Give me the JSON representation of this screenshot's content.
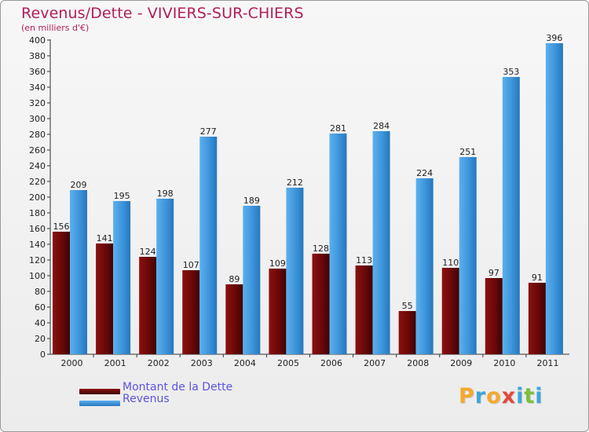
{
  "chart_data": {
    "type": "bar",
    "title": "Revenus/Dette - VIVIERS-SUR-CHIERS",
    "subtitle": "(en milliers d'€)",
    "xlabel": "",
    "ylabel": "",
    "ylim": [
      0,
      400
    ],
    "ytick_step": 20,
    "grid": false,
    "legend_position": "bottom-left",
    "categories": [
      "2000",
      "2001",
      "2002",
      "2003",
      "2004",
      "2005",
      "2006",
      "2007",
      "2008",
      "2009",
      "2010",
      "2011"
    ],
    "series": [
      {
        "name": "Montant de la Dette",
        "color": "#6e0a0a",
        "values": [
          156,
          141,
          124,
          107,
          89,
          109,
          128,
          113,
          55,
          110,
          97,
          91
        ]
      },
      {
        "name": "Revenus",
        "color": "#3d94da",
        "values": [
          209,
          195,
          198,
          277,
          189,
          212,
          281,
          284,
          224,
          251,
          353,
          396
        ]
      }
    ]
  },
  "logo": {
    "text": "Proxiti",
    "letters": [
      {
        "ch": "P",
        "color": "#f4a82c"
      },
      {
        "ch": "r",
        "color": "#3aa6dd"
      },
      {
        "ch": "o",
        "color": "#f4a82c"
      },
      {
        "ch": "x",
        "color": "#e04a3c"
      },
      {
        "ch": "i",
        "color": "#3aa6dd"
      },
      {
        "ch": "t",
        "color": "#7bbf3a"
      },
      {
        "ch": "i",
        "color": "#3aa6dd"
      }
    ]
  }
}
